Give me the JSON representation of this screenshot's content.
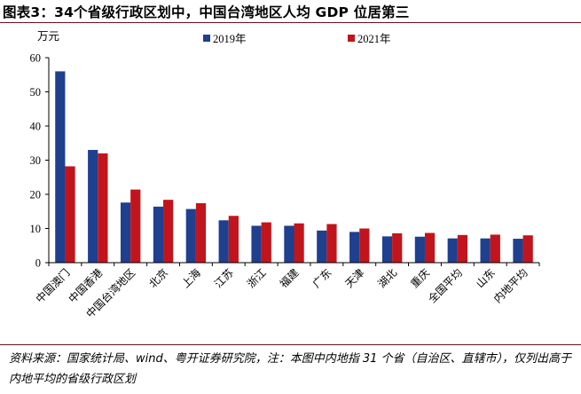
{
  "title": "图表3：34个省级行政区划中，中国台湾地区人均 GDP 位居第三",
  "source_note": "资料来源：国家统计局、wind、粤开证券研究院，注：本图中内地指 31 个省（自治区、直辖市），仅列出高于内地平均的省级行政区划",
  "colors": {
    "series_2019": "#1f3f8f",
    "series_2021": "#c2141c",
    "rule": "#6a0f1b"
  },
  "chart_data": {
    "type": "bar",
    "title": "",
    "ylabel": "万元",
    "xlabel": "",
    "ylim": [
      0,
      60
    ],
    "yticks": [
      0,
      10,
      20,
      30,
      40,
      50,
      60
    ],
    "legend_position": "top",
    "grid": false,
    "categories": [
      "中国澳门",
      "中国香港",
      "中国台湾地区",
      "北京",
      "上海",
      "江苏",
      "浙江",
      "福建",
      "广东",
      "天津",
      "湖北",
      "重庆",
      "全国平均",
      "山东",
      "内地平均"
    ],
    "series": [
      {
        "name": "2019年",
        "color": "#1f3f8f",
        "values": [
          56.0,
          33.0,
          17.6,
          16.4,
          15.7,
          12.4,
          10.8,
          10.8,
          9.4,
          9.0,
          7.7,
          7.6,
          7.1,
          7.1,
          7.0
        ]
      },
      {
        "name": "2021年",
        "color": "#c2141c",
        "values": [
          28.2,
          32.0,
          21.4,
          18.4,
          17.4,
          13.7,
          11.8,
          11.5,
          11.3,
          10.0,
          8.6,
          8.7,
          8.1,
          8.2,
          8.0
        ]
      }
    ]
  }
}
